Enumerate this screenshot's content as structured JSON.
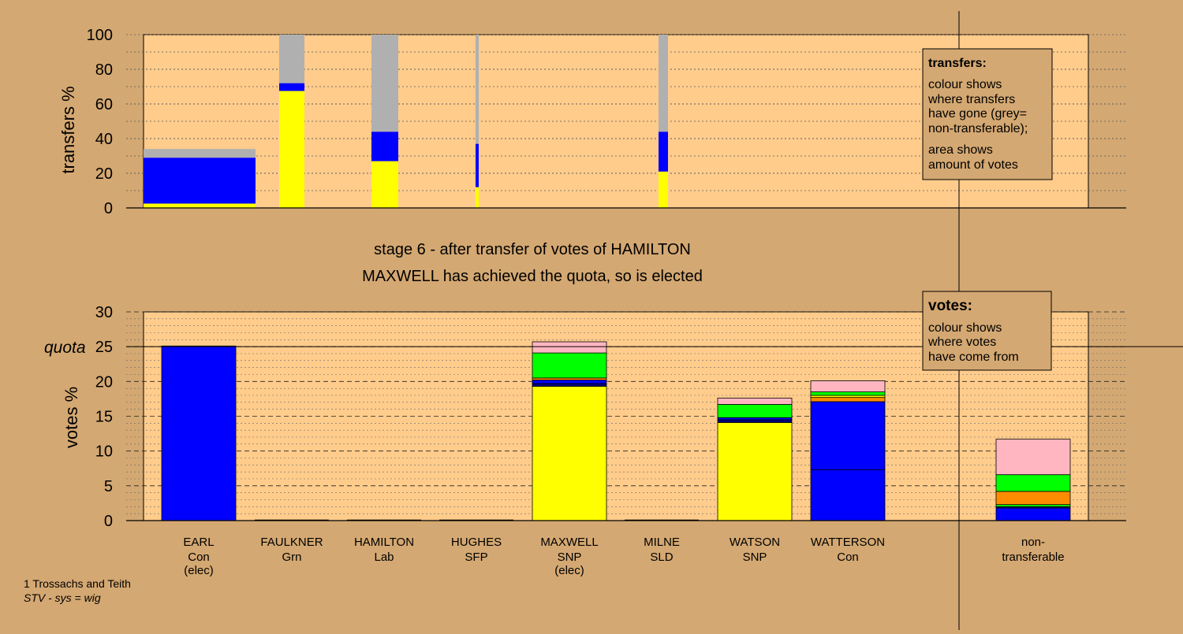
{
  "stage_title": "stage 6 - after transfer of votes of HAMILTON",
  "stage_subtitle": "MAXWELL has achieved the quota, so is elected",
  "footer": {
    "constituency": "1 Trossachs and Teith",
    "system": "STV - sys = wig"
  },
  "legend_transfers": {
    "title": "transfers:",
    "lines1": [
      "colour shows",
      "where transfers",
      "have gone (grey=",
      "non-transferable);"
    ],
    "lines2": [
      "area shows",
      "amount of votes"
    ]
  },
  "legend_votes": {
    "title": "votes:",
    "lines": [
      "colour shows",
      "where votes",
      "have come from"
    ]
  },
  "colors": {
    "Con": "#0000ff",
    "SNP": "#ffff00",
    "Lab": "#ff8c00",
    "Grn": "#00ff00",
    "SLD": "#ffb6c1",
    "SFP": "#000080",
    "non": "#b0b0b0",
    "panel": "#ffcc8c",
    "background": "#d4a872"
  },
  "chart_data": [
    {
      "type": "bar",
      "title": "",
      "ylabel": "transfers %",
      "ylim": [
        0,
        100
      ],
      "yticks": [
        0,
        20,
        40,
        60,
        80,
        100
      ],
      "stacked": true,
      "note": "bar width shows amount of votes transferred",
      "bars": [
        {
          "from": "EARL",
          "segments": [
            {
              "party": "SNP",
              "value": 2.5
            },
            {
              "party": "Con",
              "value": 26.5
            },
            {
              "party": "non",
              "value": 5
            }
          ]
        },
        {
          "from": "FAULKNER",
          "segments": [
            {
              "party": "SNP",
              "value": 67.5
            },
            {
              "party": "Con",
              "value": 4.5
            },
            {
              "party": "non",
              "value": 28
            }
          ]
        },
        {
          "from": "HAMILTON",
          "segments": [
            {
              "party": "SNP",
              "value": 27
            },
            {
              "party": "Con",
              "value": 17
            },
            {
              "party": "non",
              "value": 56
            }
          ]
        },
        {
          "from": "HUGHES",
          "segments": [
            {
              "party": "SNP",
              "value": 12
            },
            {
              "party": "Con",
              "value": 25
            },
            {
              "party": "non",
              "value": 63
            }
          ]
        },
        {
          "from": "MILNE",
          "segments": [
            {
              "party": "SNP",
              "value": 21
            },
            {
              "party": "Con",
              "value": 23
            },
            {
              "party": "non",
              "value": 56
            }
          ]
        }
      ]
    },
    {
      "type": "bar",
      "title": "",
      "ylabel": "votes %",
      "ylim": [
        0,
        30
      ],
      "yticks": [
        0,
        5,
        10,
        15,
        20,
        25,
        30
      ],
      "quota": 25,
      "quota_label": "quota",
      "stacked": true,
      "categories": [
        {
          "name": "EARL",
          "party": "Con",
          "status": "(elec)"
        },
        {
          "name": "FAULKNER",
          "party": "Grn",
          "status": ""
        },
        {
          "name": "HAMILTON",
          "party": "Lab",
          "status": ""
        },
        {
          "name": "HUGHES",
          "party": "SFP",
          "status": ""
        },
        {
          "name": "MAXWELL",
          "party": "SNP",
          "status": "(elec)"
        },
        {
          "name": "MILNE",
          "party": "SLD",
          "status": ""
        },
        {
          "name": "WATSON",
          "party": "SNP",
          "status": ""
        },
        {
          "name": "WATTERSON",
          "party": "Con",
          "status": ""
        },
        {
          "name": "non-",
          "party": "transferable",
          "status": ""
        }
      ],
      "stacks": [
        [
          {
            "party": "Con",
            "value": 25.1
          }
        ],
        [],
        [],
        [],
        [
          {
            "party": "SNP",
            "value": 19.3
          },
          {
            "party": "SFP",
            "value": 0.4
          },
          {
            "party": "Con",
            "value": 0.5
          },
          {
            "party": "Lab",
            "value": 0.3
          },
          {
            "party": "Grn",
            "value": 3.6
          },
          {
            "party": "SLD",
            "value": 1.6
          }
        ],
        [],
        [
          {
            "party": "SNP",
            "value": 14.1
          },
          {
            "party": "SFP",
            "value": 0.4
          },
          {
            "party": "Con",
            "value": 0.3
          },
          {
            "party": "Grn",
            "value": 1.9
          },
          {
            "party": "SLD",
            "value": 0.9
          }
        ],
        [
          {
            "party": "Con",
            "value": 7.3
          },
          {
            "party": "Con",
            "value": 9.8
          },
          {
            "party": "Lab",
            "value": 0.6
          },
          {
            "party": "SNP",
            "value": 0.3
          },
          {
            "party": "Grn",
            "value": 0.5
          },
          {
            "party": "SLD",
            "value": 1.6
          }
        ],
        [
          {
            "party": "Con",
            "value": 1.8
          },
          {
            "party": "SFP",
            "value": 0.2
          },
          {
            "party": "Grn",
            "value": 0.3
          },
          {
            "party": "Lab",
            "value": 1.9
          },
          {
            "party": "Grn",
            "value": 2.4
          },
          {
            "party": "SLD",
            "value": 5.1
          }
        ]
      ]
    }
  ]
}
